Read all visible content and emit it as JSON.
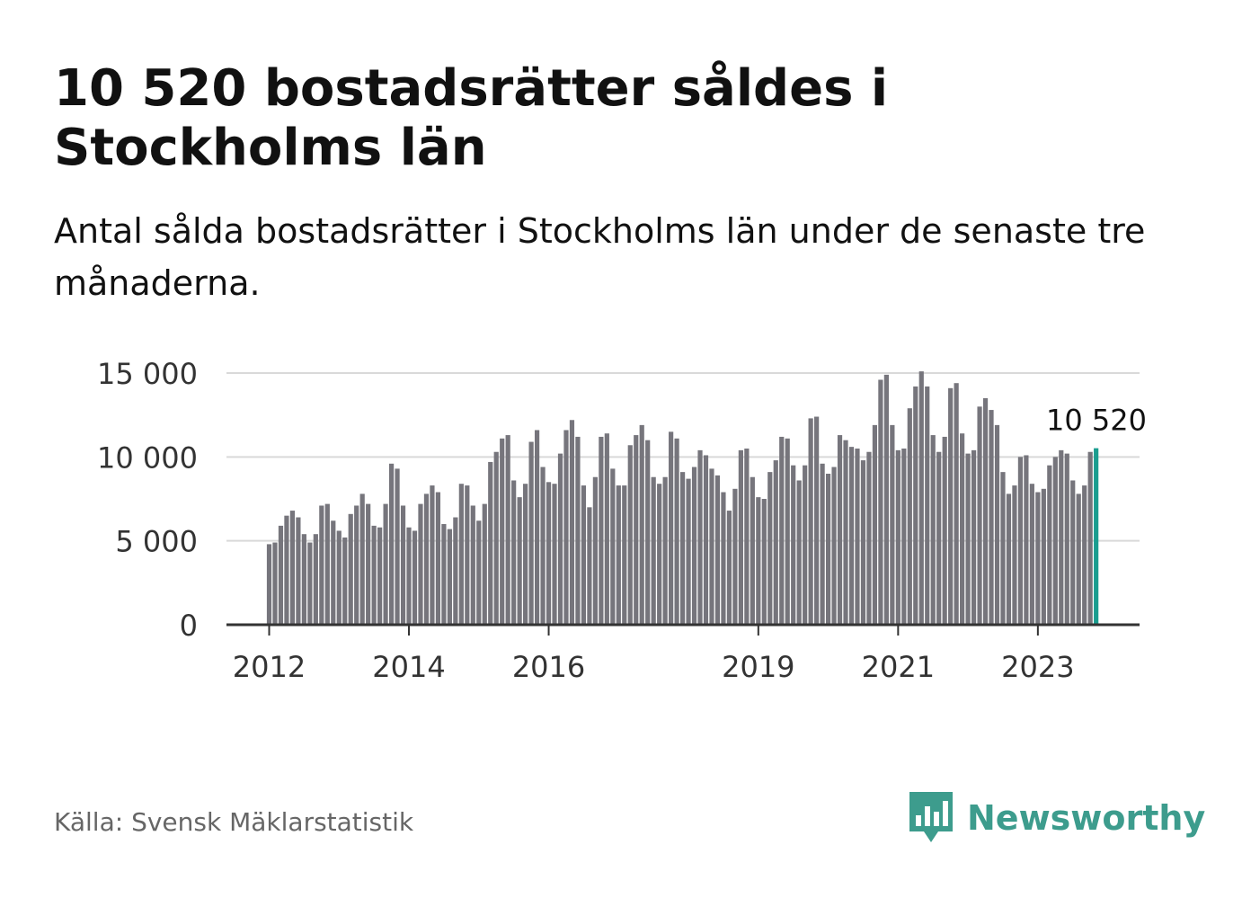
{
  "header": {
    "title": "10 520 bostadsrätter såldes i Stockholms län",
    "subtitle": "Antal sålda bostadsrätter i Stockholms län under de senaste tre månaderna."
  },
  "footer": {
    "source": "Källa: Svensk Mäklarstatistik",
    "brand_name": "Newsworthy",
    "brand_icon": "bar-chart-speech-bubble-icon",
    "brand_color": "#3d9c8d"
  },
  "colors": {
    "bar": "#76757c",
    "highlight": "#1a9d8f",
    "grid": "#d9d9d9",
    "axis": "#333333",
    "text": "#111111"
  },
  "chart_data": {
    "type": "bar",
    "title": "10 520 bostadsrätter såldes i Stockholms län",
    "subtitle": "Antal sålda bostadsrätter i Stockholms län under de senaste tre månaderna.",
    "xlabel": "",
    "ylabel": "",
    "ylim": [
      0,
      15000
    ],
    "yticks": [
      0,
      5000,
      10000,
      15000
    ],
    "ytick_labels": [
      "0",
      "5 000",
      "10 000",
      "15 000"
    ],
    "xticks": [
      {
        "label": "2012",
        "index": 0
      },
      {
        "label": "2014",
        "index": 24
      },
      {
        "label": "2016",
        "index": 48
      },
      {
        "label": "2019",
        "index": 84
      },
      {
        "label": "2021",
        "index": 108
      },
      {
        "label": "2023",
        "index": 132
      }
    ],
    "grid": true,
    "start": "2012-01",
    "frequency": "monthly",
    "highlight_index": 142,
    "highlight_label": "10 520",
    "values": [
      4800,
      4900,
      5900,
      6500,
      6800,
      6400,
      5400,
      4900,
      5400,
      7100,
      7200,
      6200,
      5600,
      5200,
      6600,
      7100,
      7800,
      7200,
      5900,
      5800,
      7200,
      9600,
      9300,
      7100,
      5800,
      5600,
      7200,
      7800,
      8300,
      7900,
      6000,
      5700,
      6400,
      8400,
      8300,
      7100,
      6200,
      7200,
      9700,
      10300,
      11100,
      11300,
      8600,
      7600,
      8400,
      10900,
      11600,
      9400,
      8500,
      8400,
      10200,
      11600,
      12200,
      11200,
      8300,
      7000,
      8800,
      11200,
      11400,
      9300,
      8300,
      8300,
      10700,
      11300,
      11900,
      11000,
      8800,
      8400,
      8800,
      11500,
      11100,
      9100,
      8700,
      9400,
      10400,
      10100,
      9300,
      8900,
      7900,
      6800,
      8100,
      10400,
      10500,
      8800,
      7600,
      7500,
      9100,
      9800,
      11200,
      11100,
      9500,
      8600,
      9500,
      12300,
      12400,
      9600,
      9000,
      9400,
      11300,
      11000,
      10600,
      10500,
      9800,
      10300,
      11900,
      14600,
      14900,
      11900,
      10400,
      10500,
      12900,
      14200,
      15100,
      14200,
      11300,
      10300,
      11200,
      14100,
      14400,
      11400,
      10200,
      10400,
      13000,
      13500,
      12800,
      11900,
      9100,
      7800,
      8300,
      10000,
      10100,
      8400,
      7900,
      8100,
      9500,
      10000,
      10400,
      10200,
      8600,
      7800,
      8300,
      10300,
      10520
    ]
  }
}
